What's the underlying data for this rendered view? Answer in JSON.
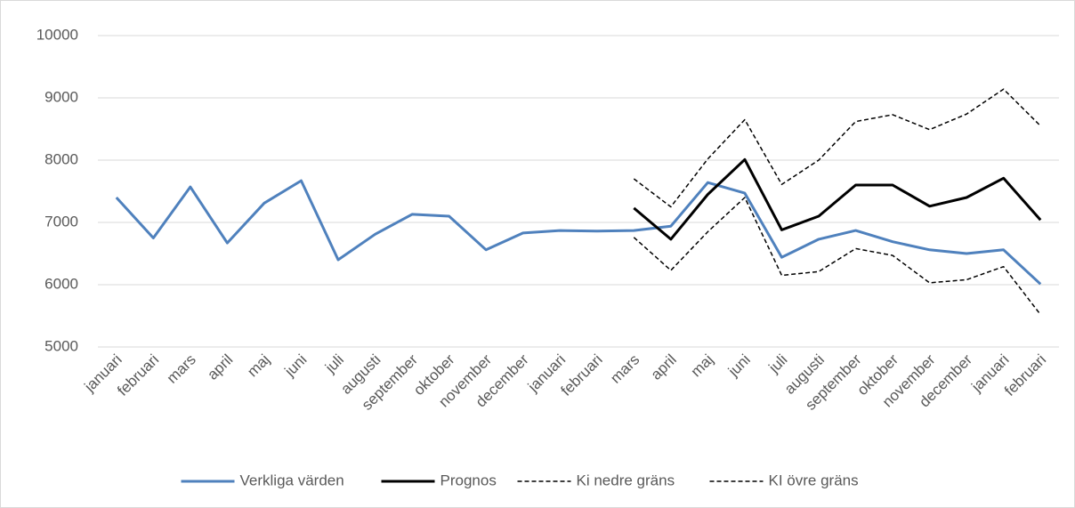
{
  "chart_data": {
    "type": "line",
    "categories": [
      "januari",
      "februari",
      "mars",
      "april",
      "maj",
      "juni",
      "juli",
      "augusti",
      "september",
      "oktober",
      "november",
      "december",
      "januari",
      "februari",
      "mars",
      "april",
      "maj",
      "juni",
      "juli",
      "augusti",
      "september",
      "oktober",
      "november",
      "december",
      "januari",
      "februari"
    ],
    "series": [
      {
        "name": "Verkliga värden",
        "color": "#4f81bd",
        "dashed": false,
        "width": 3,
        "values": [
          7400,
          6750,
          7570,
          6670,
          7310,
          7670,
          6400,
          6810,
          7130,
          7100,
          6560,
          6830,
          6870,
          6860,
          6870,
          6940,
          7640,
          7470,
          6440,
          6730,
          6870,
          6690,
          6560,
          6500,
          6560,
          6010
        ]
      },
      {
        "name": "Prognos",
        "color": "#000000",
        "dashed": false,
        "width": 3,
        "values": [
          null,
          null,
          null,
          null,
          null,
          null,
          null,
          null,
          null,
          null,
          null,
          null,
          null,
          null,
          7230,
          6730,
          7450,
          8010,
          6880,
          7100,
          7600,
          7600,
          7260,
          7400,
          7710,
          7040
        ]
      },
      {
        "name": "Ki nedre gräns",
        "color": "#000000",
        "dashed": true,
        "width": 1.5,
        "values": [
          null,
          null,
          null,
          null,
          null,
          null,
          null,
          null,
          null,
          null,
          null,
          null,
          null,
          null,
          6760,
          6230,
          6850,
          7400,
          6150,
          6210,
          6580,
          6470,
          6030,
          6080,
          6290,
          5520
        ]
      },
      {
        "name": "KI övre gräns",
        "color": "#000000",
        "dashed": true,
        "width": 1.5,
        "values": [
          null,
          null,
          null,
          null,
          null,
          null,
          null,
          null,
          null,
          null,
          null,
          null,
          null,
          null,
          7700,
          7250,
          8020,
          8650,
          7610,
          8000,
          8620,
          8730,
          8490,
          8740,
          9140,
          8550
        ]
      }
    ],
    "ylim": [
      5000,
      10000
    ],
    "yticks": [
      5000,
      6000,
      7000,
      8000,
      9000,
      10000
    ],
    "grid": true,
    "legend": "bottom"
  }
}
